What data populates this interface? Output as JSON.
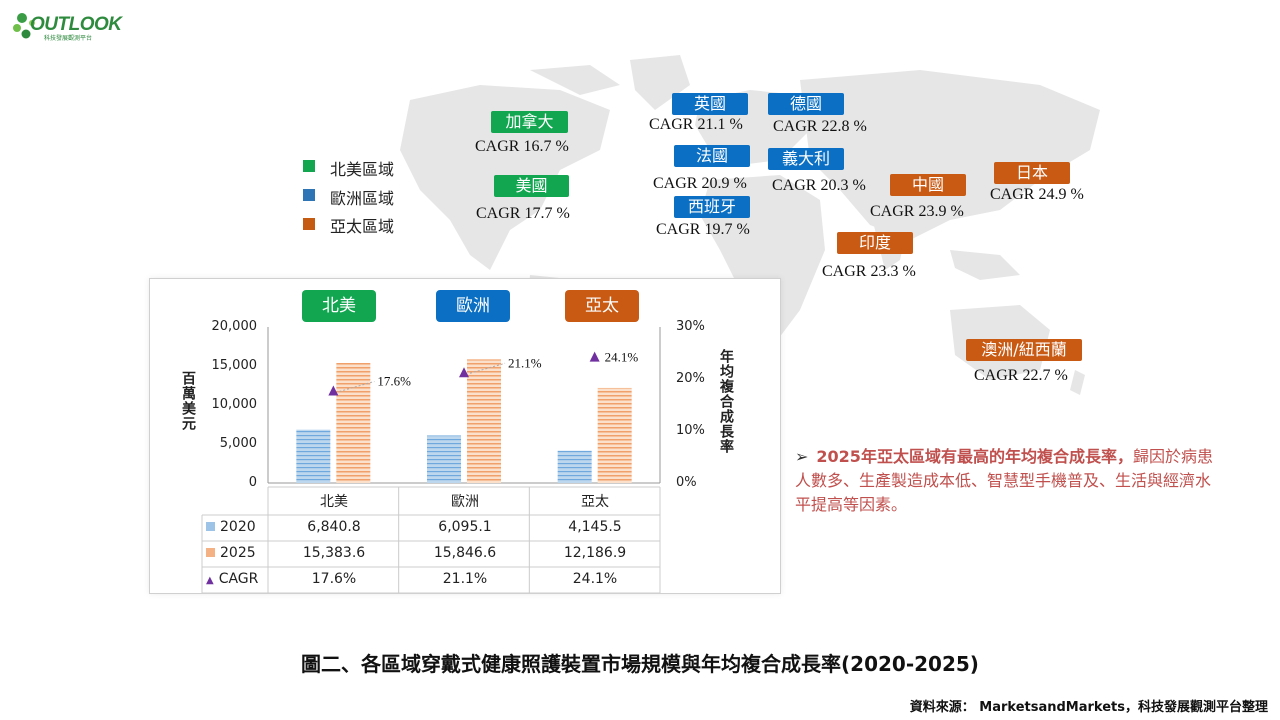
{
  "logo": {
    "text": "OUTLOOK",
    "subtitle": "科技發展觀測平台"
  },
  "legend": [
    {
      "label": "北美區域",
      "color": "#12a651"
    },
    {
      "label": "歐洲區域",
      "color": "#2e75b6"
    },
    {
      "label": "亞太區域",
      "color": "#c55a11"
    }
  ],
  "map_tags": [
    {
      "id": "canada",
      "name": "加拿大",
      "cagr": "CAGR 16.7 %",
      "region": "green"
    },
    {
      "id": "usa",
      "name": "美國",
      "cagr": "CAGR 17.7 %",
      "region": "green"
    },
    {
      "id": "uk",
      "name": "英國",
      "cagr": "CAGR 21.1 %",
      "region": "blue"
    },
    {
      "id": "germany",
      "name": "德國",
      "cagr": "CAGR 22.8 %",
      "region": "blue"
    },
    {
      "id": "france",
      "name": "法國",
      "cagr": "CAGR 20.9 %",
      "region": "blue"
    },
    {
      "id": "italy",
      "name": "義大利",
      "cagr": "CAGR 20.3 %",
      "region": "blue"
    },
    {
      "id": "spain",
      "name": "西班牙",
      "cagr": "CAGR 19.7 %",
      "region": "blue"
    },
    {
      "id": "china",
      "name": "中國",
      "cagr": "CAGR 23.9 %",
      "region": "orange"
    },
    {
      "id": "japan",
      "name": "日本",
      "cagr": "CAGR 24.9 %",
      "region": "orange"
    },
    {
      "id": "india",
      "name": "印度",
      "cagr": "CAGR 23.3 %",
      "region": "orange"
    },
    {
      "id": "anz",
      "name": "澳洲/紐西蘭",
      "cagr": "CAGR 22.7 %",
      "region": "orange"
    }
  ],
  "chart_data": {
    "type": "bar",
    "categories": [
      "北美",
      "歐洲",
      "亞太"
    ],
    "category_colors": [
      "#12a651",
      "#0b6fc3",
      "#c85a14"
    ],
    "series": [
      {
        "name": "2020",
        "values": [
          6840.8,
          6095.1,
          4145.5
        ],
        "labels": [
          "6,840.8",
          "6,095.1",
          "4,145.5"
        ],
        "color": "#9dc3e6"
      },
      {
        "name": "2025",
        "values": [
          15383.6,
          15846.6,
          12186.9
        ],
        "labels": [
          "15,383.6",
          "15,846.6",
          "12,186.9"
        ],
        "color": "#f4b183"
      },
      {
        "name": "CAGR",
        "values": [
          17.6,
          21.1,
          24.1
        ],
        "labels": [
          "17.6%",
          "21.1%",
          "24.1%"
        ],
        "color": "#7030a0",
        "axis": "right"
      }
    ],
    "ylabel": "百萬美元",
    "y2label": "年均複合成長率",
    "ylim": [
      0,
      20000
    ],
    "y2lim": [
      0,
      30
    ],
    "yticks": [
      "0",
      "5,000",
      "10,000",
      "15,000",
      "20,000"
    ],
    "y2ticks": [
      "0%",
      "10%",
      "20%",
      "30%"
    ],
    "point_labels": [
      "17.6%",
      "21.1%",
      "24.1%"
    ]
  },
  "note": {
    "bullet": "➢",
    "bold": "2025年亞太區域有最高的年均複合成長率，",
    "text": "歸因於病患人數多、生產製造成本低、智慧型手機普及、生活與經濟水平提高等因素。"
  },
  "caption": "圖二、各區域穿戴式健康照護裝置市場規模與年均複合成長率(2020-2025)",
  "source": "資料來源： MarketsandMarkets，科技發展觀測平台整理"
}
